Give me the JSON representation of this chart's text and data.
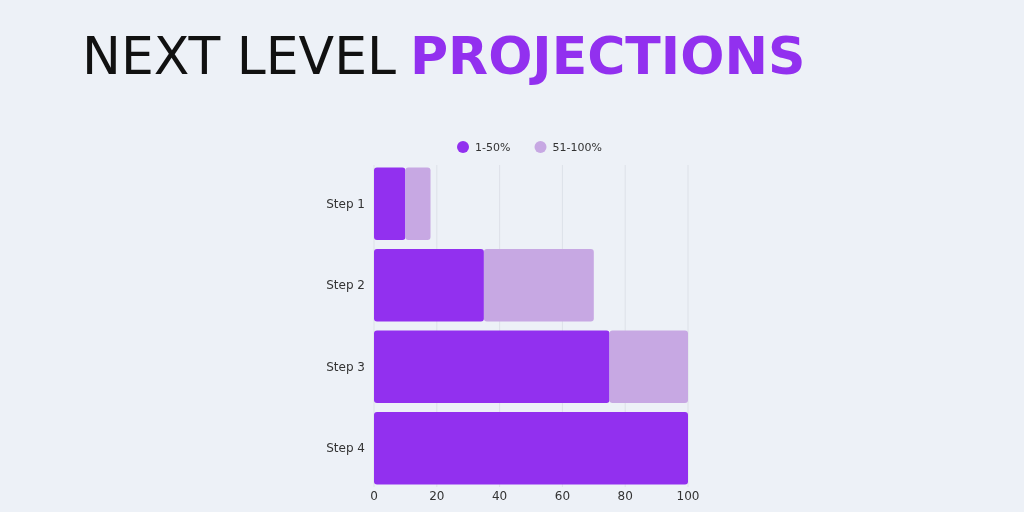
{
  "chart_data": {
    "type": "bar",
    "orientation": "horizontal",
    "stacked": true,
    "title": "NEXT LEVEL",
    "subtitle": "PROJECTIONS",
    "categories": [
      "Step 1",
      "Step 2",
      "Step 3",
      "Step 4"
    ],
    "series": [
      {
        "name": "1-50%",
        "color": "#9230ef",
        "values": [
          10,
          35,
          75,
          100
        ]
      },
      {
        "name": "51-100%",
        "color": "#c7a8e3",
        "values": [
          8,
          35,
          25,
          0
        ]
      }
    ],
    "xlim": [
      0,
      100
    ],
    "xticks": [
      0,
      20,
      40,
      60,
      80,
      100
    ],
    "grid": "x",
    "legend": "top"
  }
}
